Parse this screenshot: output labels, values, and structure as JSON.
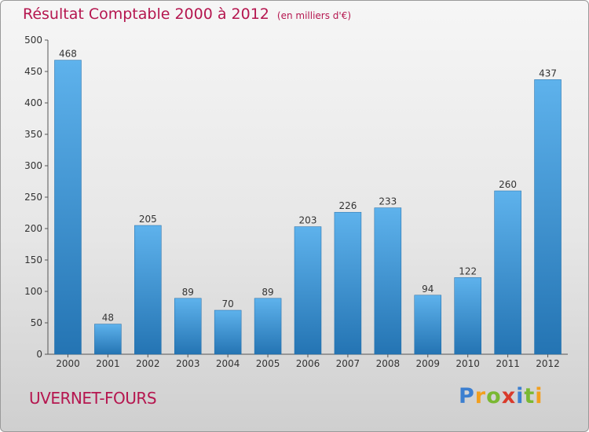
{
  "title": "Résultat Comptable 2000 à 2012",
  "subtitle": "(en milliers d'€)",
  "commune": "UVERNET-FOURS",
  "logo": {
    "letters": [
      "P",
      "r",
      "o",
      "x",
      "i",
      "t",
      "i"
    ],
    "colors": [
      "#3c7fd0",
      "#f29f1d",
      "#7ab832",
      "#d93a2a",
      "#3c7fd0",
      "#7ab832",
      "#f29f1d"
    ]
  },
  "colors": {
    "title": "#b5164f",
    "bar_top": "#5eb2ec",
    "bar_bottom": "#2474b3"
  },
  "chart_data": {
    "type": "bar",
    "title": "Résultat Comptable 2000 à 2012",
    "subtitle": "(en milliers d'€)",
    "categories": [
      "2000",
      "2001",
      "2002",
      "2003",
      "2004",
      "2005",
      "2006",
      "2007",
      "2008",
      "2009",
      "2010",
      "2011",
      "2012"
    ],
    "values": [
      468,
      48,
      205,
      89,
      70,
      89,
      203,
      226,
      233,
      94,
      122,
      260,
      437
    ],
    "ylim": [
      0,
      500
    ],
    "yticks": [
      0,
      50,
      100,
      150,
      200,
      250,
      300,
      350,
      400,
      450,
      500
    ],
    "grid": false,
    "data_labels": true
  }
}
